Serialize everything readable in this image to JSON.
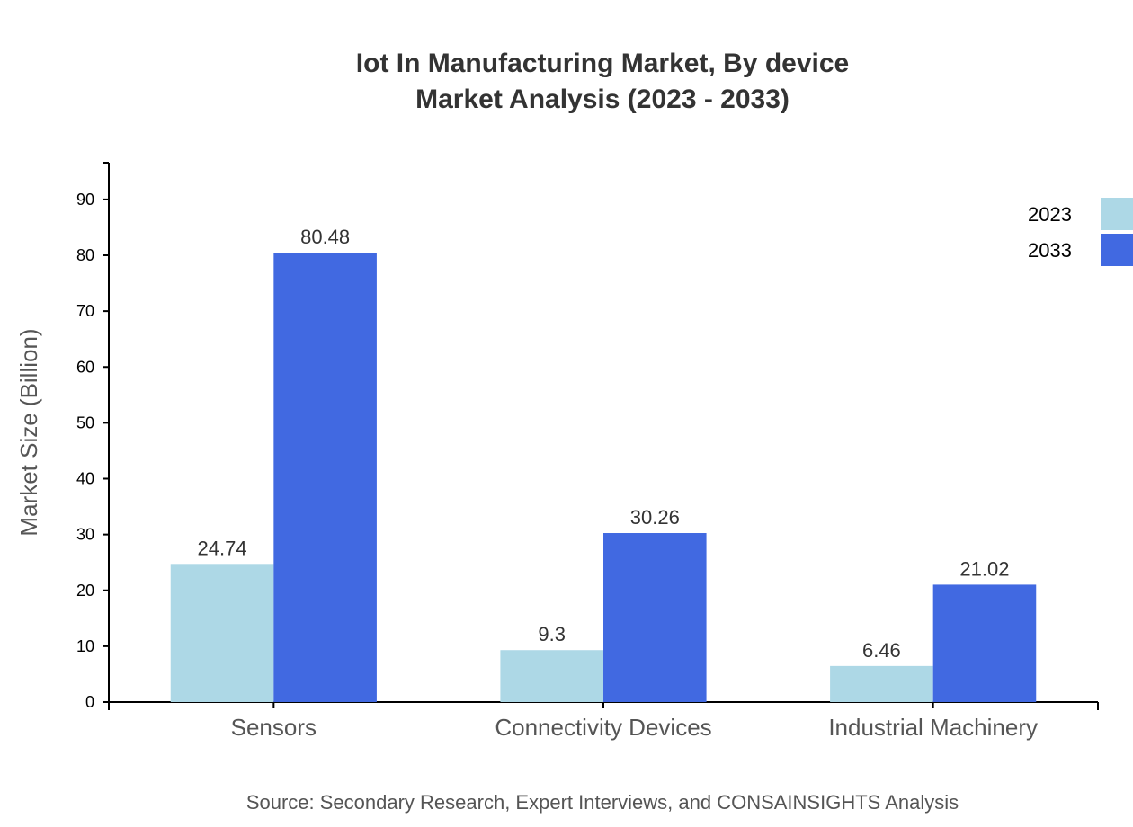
{
  "chart_data": {
    "type": "bar",
    "title": "Iot In Manufacturing Market, By device",
    "subtitle": "Market Analysis (2023 - 2033)",
    "xlabel": "",
    "ylabel": "Market Size (Billion)",
    "ylim": [
      0,
      96.58
    ],
    "yticks": [
      0,
      10,
      20,
      30,
      40,
      50,
      60,
      70,
      80,
      90
    ],
    "categories": [
      "Sensors",
      "Connectivity Devices",
      "Industrial Machinery"
    ],
    "series": [
      {
        "name": "2023",
        "color": "#add8e6",
        "values": [
          24.74,
          9.3,
          6.46
        ]
      },
      {
        "name": "2033",
        "color": "#4169e1",
        "values": [
          80.48,
          30.26,
          21.02
        ]
      }
    ],
    "legend_position": "top-right",
    "grid": false,
    "source": "Source: Secondary Research, Expert Interviews, and CONSAINSIGHTS Analysis"
  }
}
